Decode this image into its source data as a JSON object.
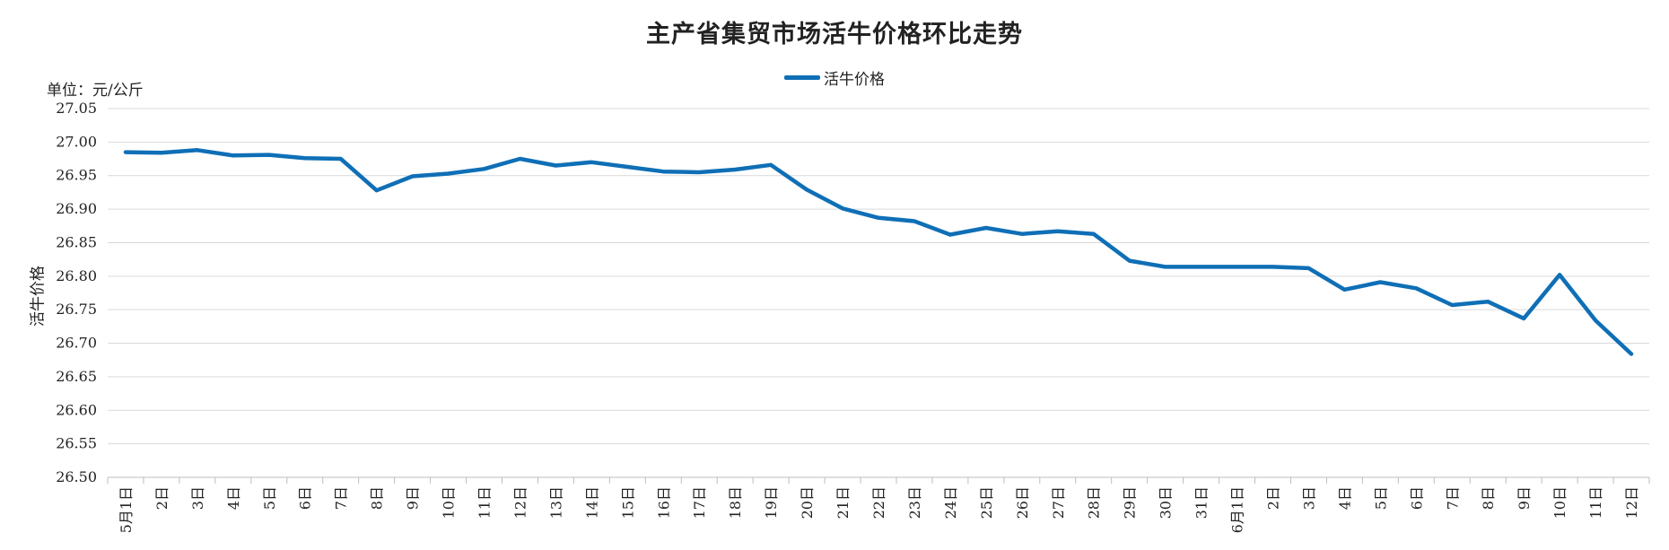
{
  "chart_data": {
    "type": "line",
    "title": "主产省集贸市场活牛价格环比走势",
    "unit_label": "单位：元/公斤",
    "ylabel": "活牛价格",
    "xlabel": "",
    "legend": {
      "position": "top-center",
      "entries": [
        "活牛价格"
      ]
    },
    "grid": true,
    "ylim": [
      26.5,
      27.05
    ],
    "y_ticks": [
      "26.50",
      "26.55",
      "26.60",
      "26.65",
      "26.70",
      "26.75",
      "26.80",
      "26.85",
      "26.90",
      "26.95",
      "27.00",
      "27.05"
    ],
    "categories": [
      "5月1日",
      "2日",
      "3日",
      "4日",
      "5日",
      "6日",
      "7日",
      "8日",
      "9日",
      "10日",
      "11日",
      "12日",
      "13日",
      "14日",
      "15日",
      "16日",
      "17日",
      "18日",
      "19日",
      "20日",
      "21日",
      "22日",
      "23日",
      "24日",
      "25日",
      "26日",
      "27日",
      "28日",
      "29日",
      "30日",
      "31日",
      "6月1日",
      "2日",
      "3日",
      "4日",
      "5日",
      "6日",
      "7日",
      "8日",
      "9日",
      "10日",
      "11日",
      "12日"
    ],
    "series": [
      {
        "name": "活牛价格",
        "color": "#0F6FB6",
        "values": [
          26.985,
          26.984,
          26.988,
          26.98,
          26.981,
          26.976,
          26.975,
          26.928,
          26.949,
          26.953,
          26.96,
          26.975,
          26.965,
          26.97,
          26.963,
          26.956,
          26.955,
          26.959,
          26.966,
          26.929,
          26.901,
          26.887,
          26.882,
          26.862,
          26.872,
          26.863,
          26.867,
          26.863,
          26.823,
          26.814,
          26.814,
          26.814,
          26.814,
          26.812,
          26.78,
          26.791,
          26.782,
          26.757,
          26.762,
          26.737,
          26.802,
          26.734,
          26.684
        ]
      }
    ]
  }
}
